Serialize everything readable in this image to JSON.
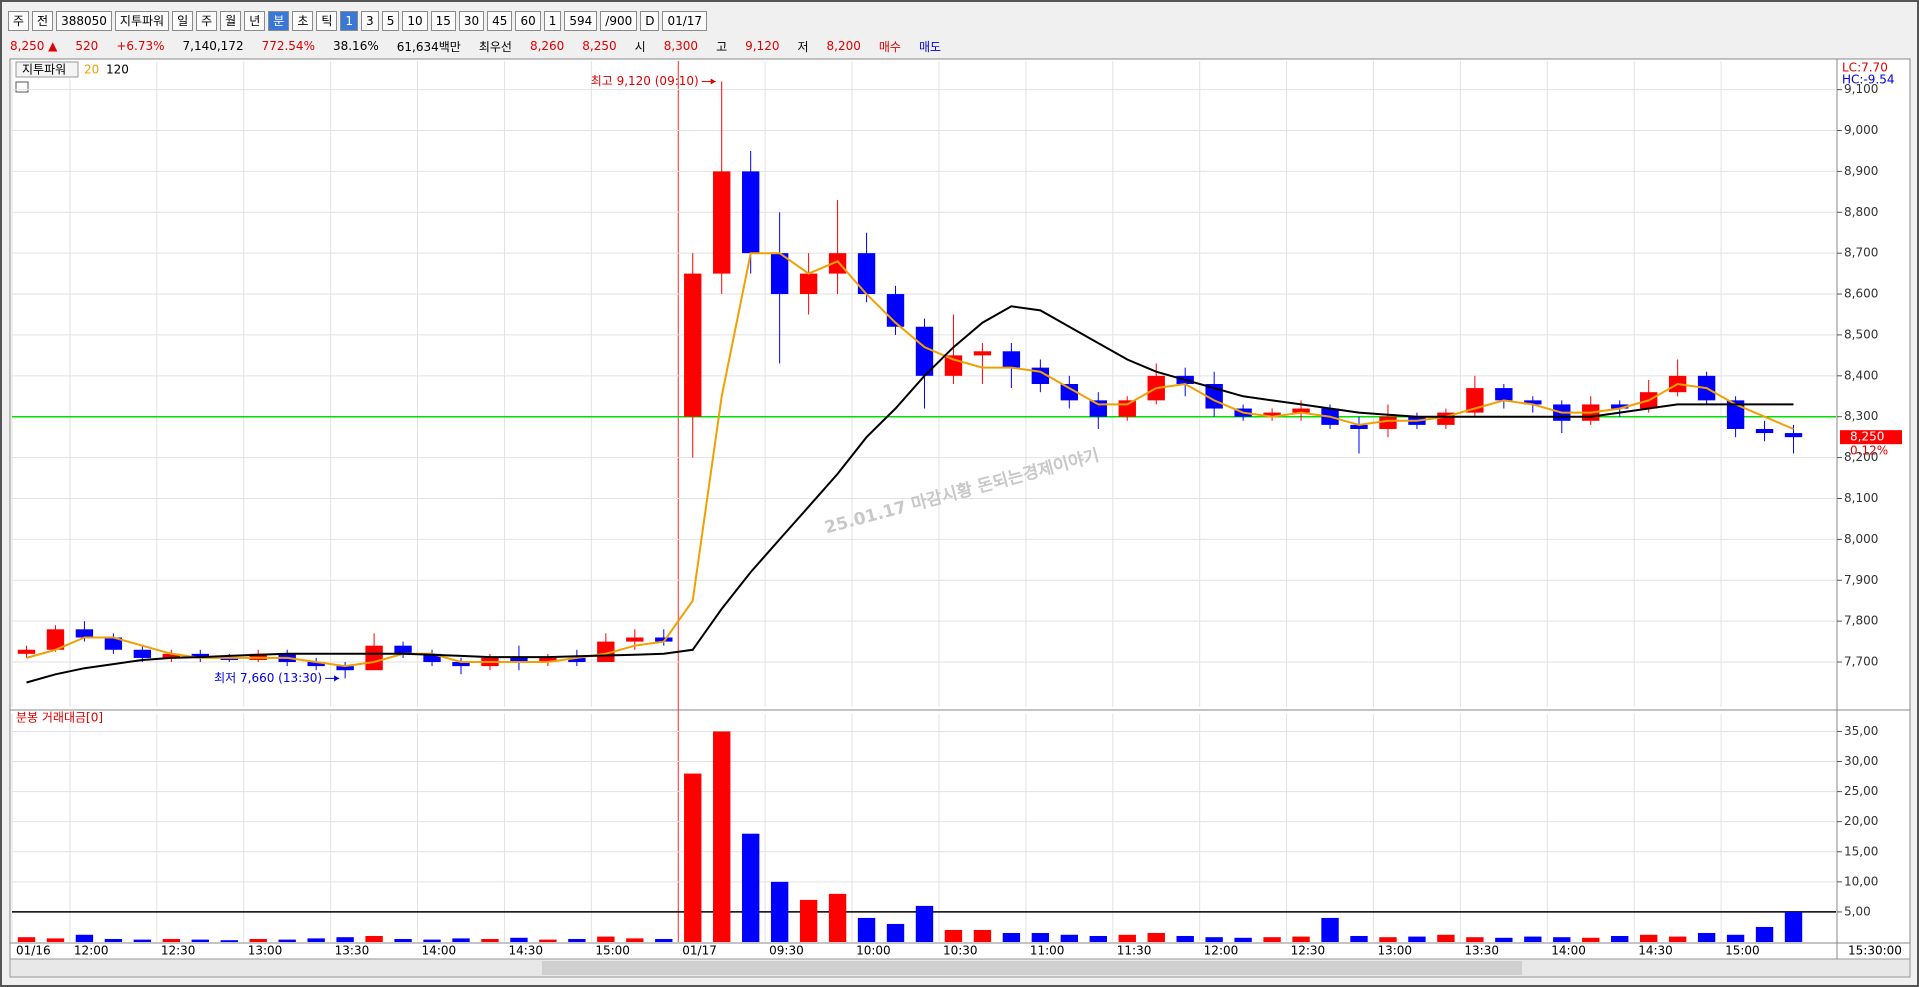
{
  "toolbar": {
    "row1": [
      {
        "text": "주"
      },
      {
        "text": "전"
      },
      {
        "text": "388050"
      },
      {
        "text": "지투파워"
      },
      {
        "text": "일"
      },
      {
        "text": "주"
      },
      {
        "text": "월"
      },
      {
        "text": "년"
      },
      {
        "text": "분",
        "active": true
      },
      {
        "text": "초"
      },
      {
        "text": "틱"
      },
      {
        "text": "1",
        "active": true
      },
      {
        "text": "3"
      },
      {
        "text": "5"
      },
      {
        "text": "10"
      },
      {
        "text": "15"
      },
      {
        "text": "30"
      },
      {
        "text": "45"
      },
      {
        "text": "60"
      },
      {
        "text": "1"
      },
      {
        "text": "594"
      },
      {
        "text": "/900"
      },
      {
        "text": "D"
      },
      {
        "text": "01/17"
      }
    ],
    "row2": [
      {
        "text": "8,250 ▲",
        "color": "#e00000"
      },
      {
        "text": "520",
        "color": "#e00000"
      },
      {
        "text": "+6.73%",
        "color": "#e00000"
      },
      {
        "text": "7,140,172",
        "color": "#000000"
      },
      {
        "text": "772.54%",
        "color": "#e00000"
      },
      {
        "text": "38.16%",
        "color": "#000000"
      },
      {
        "text": "61,634백만",
        "color": "#000000"
      },
      {
        "text": "최우선",
        "color": "#000000"
      },
      {
        "text": "8,260",
        "color": "#e00000"
      },
      {
        "text": "8,250",
        "color": "#e00000"
      },
      {
        "text": "시",
        "color": "#000000"
      },
      {
        "text": "8,300",
        "color": "#e00000"
      },
      {
        "text": "고",
        "color": "#000000"
      },
      {
        "text": "9,120",
        "color": "#e00000"
      },
      {
        "text": "저",
        "color": "#000000"
      },
      {
        "text": "8,200",
        "color": "#e00000"
      },
      {
        "text": "매수",
        "color": "#e00000"
      },
      {
        "text": "매도",
        "color": "#0000e0"
      }
    ]
  },
  "chart_data": [
    {
      "type": "candlestick",
      "name": "지투파워",
      "up_color": "#ff0000",
      "down_color": "#0000ff",
      "open": [
        7720,
        7730,
        7780,
        7760,
        7730,
        7710,
        7720,
        7710,
        7705,
        7720,
        7700,
        7690,
        7680,
        7740,
        7720,
        7700,
        7690,
        7710,
        7700,
        7710,
        7700,
        7750,
        7760,
        8300,
        8650,
        8900,
        8700,
        8600,
        8650,
        8700,
        8600,
        8520,
        8400,
        8450,
        8460,
        8420,
        8380,
        8340,
        8300,
        8340,
        8400,
        8380,
        8320,
        8300,
        8310,
        8320,
        8280,
        8270,
        8300,
        8280,
        8310,
        8370,
        8340,
        8330,
        8290,
        8330,
        8320,
        8360,
        8400,
        8340,
        8270,
        8260
      ],
      "high": [
        7740,
        7790,
        7800,
        7770,
        7740,
        7730,
        7730,
        7720,
        7730,
        7730,
        7710,
        7700,
        7770,
        7750,
        7730,
        7710,
        7720,
        7740,
        7720,
        7730,
        7770,
        7780,
        7780,
        8700,
        9120,
        8950,
        8800,
        8700,
        8830,
        8750,
        8620,
        8540,
        8550,
        8480,
        8480,
        8440,
        8400,
        8360,
        8350,
        8430,
        8420,
        8410,
        8330,
        8320,
        8340,
        8330,
        8300,
        8330,
        8310,
        8320,
        8400,
        8380,
        8350,
        8340,
        8350,
        8340,
        8390,
        8440,
        8410,
        8350,
        8290,
        8280
      ],
      "low": [
        7710,
        7725,
        7750,
        7720,
        7700,
        7700,
        7700,
        7700,
        7700,
        7690,
        7680,
        7660,
        7680,
        7710,
        7690,
        7670,
        7680,
        7680,
        7690,
        7690,
        7700,
        7730,
        7740,
        8200,
        8600,
        8650,
        8430,
        8550,
        8600,
        8580,
        8500,
        8320,
        8380,
        8380,
        8370,
        8360,
        8320,
        8270,
        8290,
        8330,
        8350,
        8300,
        8290,
        8290,
        8290,
        8270,
        8210,
        8250,
        8270,
        8270,
        8300,
        8320,
        8310,
        8260,
        8280,
        8300,
        8310,
        8350,
        8330,
        8250,
        8240,
        8210
      ],
      "close": [
        7730,
        7780,
        7760,
        7730,
        7710,
        7720,
        7710,
        7705,
        7720,
        7700,
        7690,
        7680,
        7740,
        7720,
        7700,
        7690,
        7710,
        7700,
        7710,
        7700,
        7750,
        7760,
        7750,
        8650,
        8900,
        8700,
        8600,
        8650,
        8700,
        8600,
        8520,
        8400,
        8450,
        8460,
        8420,
        8380,
        8340,
        8300,
        8340,
        8400,
        8380,
        8320,
        8300,
        8310,
        8320,
        8280,
        8270,
        8300,
        8280,
        8310,
        8370,
        8340,
        8330,
        8290,
        8330,
        8320,
        8360,
        8400,
        8340,
        8270,
        8260,
        8250
      ],
      "series": [
        {
          "name": "20",
          "color": "#f0a000",
          "values": [
            7710,
            7730,
            7760,
            7760,
            7740,
            7720,
            7710,
            7710,
            7710,
            7710,
            7700,
            7690,
            7700,
            7720,
            7720,
            7700,
            7700,
            7700,
            7700,
            7710,
            7720,
            7740,
            7750,
            7850,
            8350,
            8700,
            8700,
            8650,
            8680,
            8600,
            8530,
            8470,
            8440,
            8420,
            8420,
            8410,
            8370,
            8330,
            8330,
            8370,
            8380,
            8340,
            8310,
            8300,
            8310,
            8300,
            8280,
            8290,
            8290,
            8300,
            8320,
            8340,
            8330,
            8310,
            8310,
            8320,
            8340,
            8380,
            8370,
            8330,
            8300,
            8270
          ]
        },
        {
          "name": "120",
          "color": "#000000",
          "values": [
            7650,
            7670,
            7685,
            7695,
            7705,
            7710,
            7712,
            7715,
            7718,
            7720,
            7720,
            7720,
            7720,
            7720,
            7718,
            7715,
            7712,
            7712,
            7712,
            7714,
            7716,
            7718,
            7720,
            7730,
            7830,
            7920,
            8000,
            8080,
            8160,
            8250,
            8320,
            8400,
            8470,
            8530,
            8570,
            8560,
            8520,
            8480,
            8440,
            8410,
            8390,
            8370,
            8350,
            8340,
            8330,
            8320,
            8310,
            8305,
            8300,
            8300,
            8300,
            8300,
            8300,
            8300,
            8300,
            8310,
            8320,
            8330,
            8330,
            8330,
            8330,
            8330
          ]
        }
      ],
      "ylim": [
        7590,
        9170
      ],
      "yticks": [
        {
          "value": 7700,
          "label": "7,700"
        },
        {
          "value": 7800,
          "label": "7,800"
        },
        {
          "value": 7900,
          "label": "7,900"
        },
        {
          "value": 8000,
          "label": "8,000"
        },
        {
          "value": 8100,
          "label": "8,100"
        },
        {
          "value": 8200,
          "label": "8,200"
        },
        {
          "value": 8300,
          "label": "8,300"
        },
        {
          "value": 8400,
          "label": "8,400"
        },
        {
          "value": 8500,
          "label": "8,500"
        },
        {
          "value": 8600,
          "label": "8,600"
        },
        {
          "value": 8700,
          "label": "8,700"
        },
        {
          "value": 8800,
          "label": "8,800"
        },
        {
          "value": 8900,
          "label": "8,900"
        },
        {
          "value": 9000,
          "label": "9,000"
        },
        {
          "value": 9100,
          "label": "9,100"
        }
      ],
      "grid": true,
      "reference_line": {
        "value": 8300,
        "color": "#00dd00"
      },
      "annotations": [
        {
          "text": "최고 9,120 (09:10)",
          "value": 9120,
          "color": "#e00000"
        },
        {
          "text": "최저 7,660 (13:30)",
          "value": 7660,
          "color": "#0000e0"
        }
      ],
      "top_labels": [
        {
          "text": "LC:7.70",
          "color": "#e00000"
        },
        {
          "text": "HC:-9.54",
          "color": "#0000e0"
        }
      ],
      "last_price": {
        "value": 8250,
        "label": "8,250"
      },
      "last_change": "0.12%",
      "watermark": "25.01.17 마감시황 돈되는경제이야기"
    },
    {
      "type": "bar",
      "title": "분봉 거래대금[0]",
      "categories": [
        "01/16",
        null,
        "12:00",
        null,
        null,
        "12:30",
        null,
        null,
        "13:00",
        null,
        null,
        "13:30",
        null,
        null,
        "14:00",
        null,
        null,
        "14:30",
        null,
        null,
        "15:00",
        null,
        null,
        "01/17",
        null,
        null,
        "09:30",
        null,
        null,
        "10:00",
        null,
        null,
        "10:30",
        null,
        null,
        "11:00",
        null,
        null,
        "11:30",
        null,
        null,
        "12:00",
        null,
        null,
        "12:30",
        null,
        null,
        "13:00",
        null,
        null,
        "13:30",
        null,
        null,
        "14:00",
        null,
        null,
        "14:30",
        null,
        null,
        "15:00",
        null,
        null
      ],
      "values": [
        0.8,
        0.6,
        1.2,
        0.5,
        0.4,
        0.5,
        0.4,
        0.3,
        0.5,
        0.4,
        0.6,
        0.8,
        1.0,
        0.5,
        0.4,
        0.6,
        0.5,
        0.7,
        0.4,
        0.5,
        0.9,
        0.6,
        0.5,
        28,
        35,
        18,
        10,
        7,
        8,
        4,
        3,
        6,
        2,
        2,
        1.5,
        1.5,
        1.2,
        1.0,
        1.2,
        1.5,
        1.0,
        0.8,
        0.7,
        0.8,
        0.9,
        4,
        1.0,
        0.8,
        0.9,
        1.2,
        0.8,
        0.7,
        0.9,
        0.8,
        0.7,
        1.0,
        1.2,
        0.9,
        1.5,
        1.2,
        2.5,
        5
      ],
      "ylim": [
        0,
        37.9
      ],
      "yticks": [
        {
          "value": 5,
          "label": "5,00"
        },
        {
          "value": 10,
          "label": "10,00"
        },
        {
          "value": 15,
          "label": "15,00"
        },
        {
          "value": 20,
          "label": "20,00"
        },
        {
          "value": 25,
          "label": "25,00"
        },
        {
          "value": 30,
          "label": "30,00"
        },
        {
          "value": 35,
          "label": "35,00"
        }
      ],
      "grid": true,
      "reference_line": {
        "value": 5,
        "color": "#000000"
      },
      "x_end_label": "15:30:00"
    }
  ]
}
